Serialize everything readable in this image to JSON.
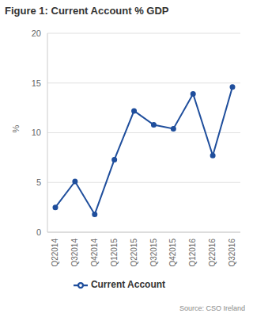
{
  "chart_data": {
    "type": "line",
    "title": "Figure 1: Current Account % GDP",
    "y_label": "%",
    "source": "Source: CSO Ireland",
    "categories": [
      "Q22014",
      "Q32014",
      "Q42014",
      "Q12015",
      "Q22015",
      "Q32015",
      "Q42015",
      "Q12016",
      "Q22016",
      "Q32016"
    ],
    "series": [
      {
        "name": "Current Account",
        "color": "#1f4e9c",
        "marker": "circle",
        "values": [
          2.5,
          5.1,
          1.8,
          7.3,
          12.2,
          10.8,
          10.4,
          13.9,
          7.7,
          14.6
        ]
      }
    ],
    "ylim": [
      0,
      20
    ],
    "yticks": [
      0,
      5,
      10,
      15,
      20
    ],
    "grid": true,
    "legend": "bottom"
  }
}
